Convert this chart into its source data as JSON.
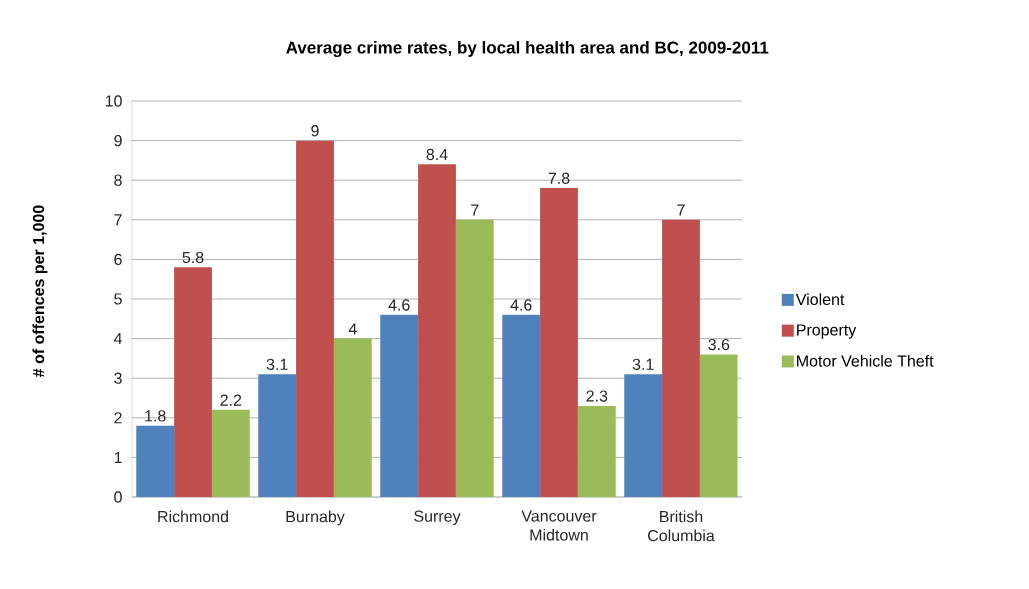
{
  "chart_data": {
    "type": "bar",
    "title": "Average crime rates, by local health area and BC, 2009-2011",
    "ylabel": "# of offences per 1,000",
    "categories": [
      "Richmond",
      "Burnaby",
      "Surrey",
      "Vancouver Midtown",
      "British Columbia"
    ],
    "series": [
      {
        "name": "Violent",
        "color": "#4f81bd",
        "values": [
          1.8,
          3.1,
          4.6,
          4.6,
          3.1
        ]
      },
      {
        "name": "Property",
        "color": "#c0504d",
        "values": [
          5.8,
          9,
          8.4,
          7.8,
          7
        ]
      },
      {
        "name": "Motor Vehicle Theft",
        "color": "#9bbb59",
        "values": [
          2.2,
          4,
          7,
          2.3,
          3.6
        ]
      }
    ],
    "ylim": [
      0,
      10
    ],
    "yticks": [
      0,
      1,
      2,
      3,
      4,
      5,
      6,
      7,
      8,
      9,
      10
    ],
    "grid": "y",
    "legend": "right",
    "data_labels": true
  }
}
